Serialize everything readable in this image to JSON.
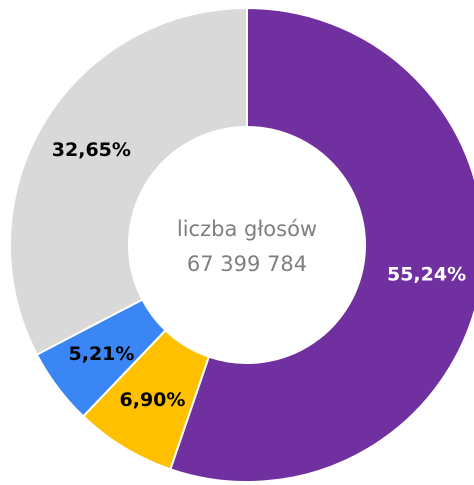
{
  "chart_data": {
    "type": "donut",
    "categories": [
      null,
      null,
      null,
      null
    ],
    "values": [
      55.24,
      6.9,
      5.21,
      32.65
    ],
    "value_labels": [
      "55,24%",
      "6,90%",
      "5,21%",
      "32,65%"
    ],
    "colors": [
      "#7030a0",
      "#ffc000",
      "#3a86f5",
      "#d9d9d9"
    ],
    "label_colors": [
      "#ffffff",
      "#000000",
      "#000000",
      "#000000"
    ],
    "annotations": [
      "liczba głosów",
      "67 399 784"
    ]
  }
}
